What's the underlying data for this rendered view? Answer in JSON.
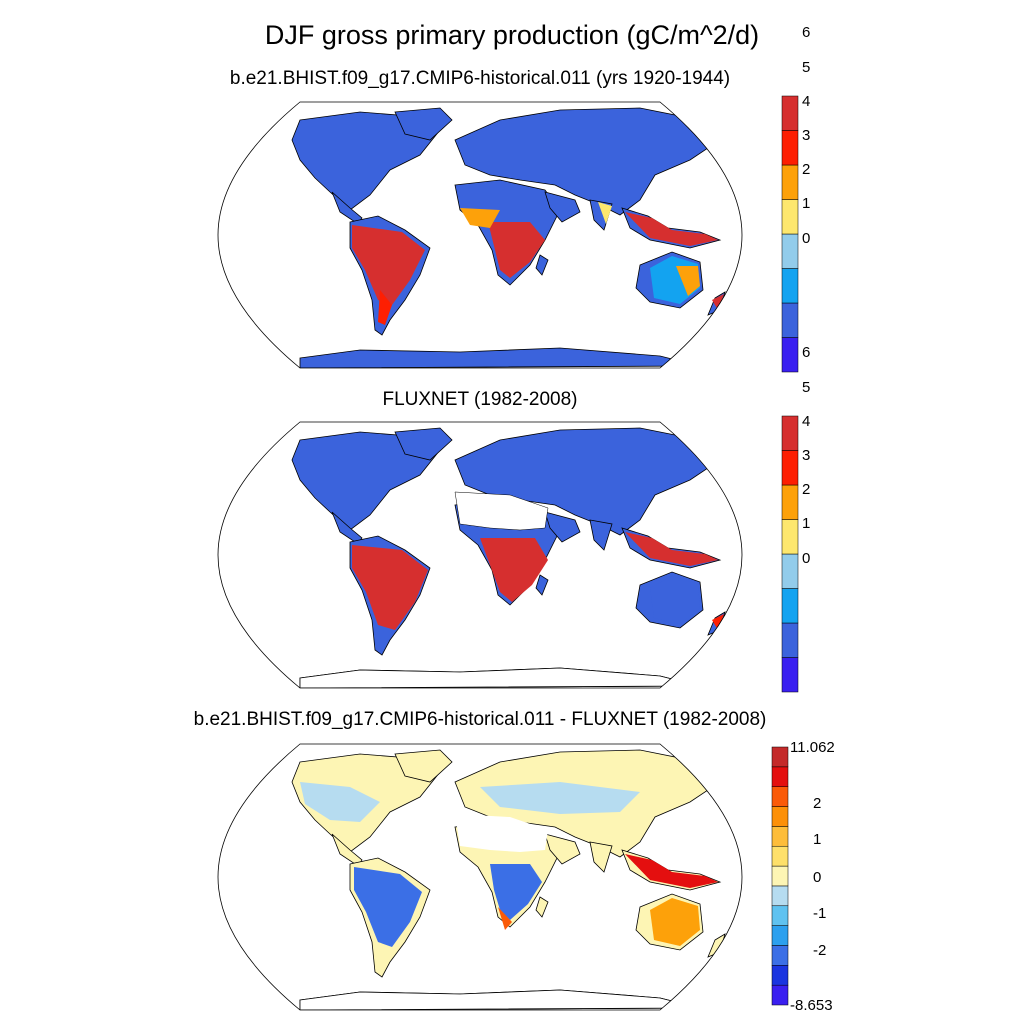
{
  "title": "DJF gross primary production (gC/m^2/d)",
  "panels": [
    {
      "subtitle": "b.e21.BHIST.f09_g17.CMIP6-historical.011 (yrs 1920-1944)",
      "colorbar": {
        "colors": [
          "#3a1ff0",
          "#3b63dc",
          "#13a3f0",
          "#92cceb",
          "#fde76e",
          "#fda10a",
          "#fd1f02",
          "#d62f2f"
        ],
        "tick_labels": [
          "0",
          "1",
          "2",
          "3",
          "4",
          "5",
          "6"
        ]
      },
      "fills": {
        "land": "#3b63dc",
        "tropics": "#d62f2f",
        "ocean": "#ffffff"
      }
    },
    {
      "subtitle": "FLUXNET (1982-2008)",
      "colorbar": {
        "colors": [
          "#3a1ff0",
          "#3b63dc",
          "#13a3f0",
          "#92cceb",
          "#fde76e",
          "#fda10a",
          "#fd1f02",
          "#d62f2f"
        ],
        "tick_labels": [
          "0",
          "1",
          "2",
          "3",
          "4",
          "5",
          "6"
        ]
      },
      "fills": {
        "land": "#3b63dc",
        "tropics": "#d62f2f",
        "desert": "#ffffff",
        "ocean": "#ffffff"
      }
    },
    {
      "subtitle": "b.e21.BHIST.f09_g17.CMIP6-historical.011 - FLUXNET (1982-2008)",
      "colorbar": {
        "colors": [
          "#3a1ff0",
          "#1a34e0",
          "#3b6fe6",
          "#2ca0ee",
          "#5fc2f0",
          "#b6dcf0",
          "#fdf5b4",
          "#fee06a",
          "#fdbd3a",
          "#fc9008",
          "#fa5a08",
          "#e40f0f",
          "#c42a2a"
        ],
        "tick_labels": [
          "11.062",
          "2",
          "1",
          "0",
          "-1",
          "-2",
          "-8.653"
        ]
      },
      "fills": {
        "land": "#fdf5b4",
        "boreal": "#b6dcf0",
        "amazon": "#3b6fe6",
        "australia": "#fda10a",
        "ocean": "#ffffff"
      }
    }
  ]
}
